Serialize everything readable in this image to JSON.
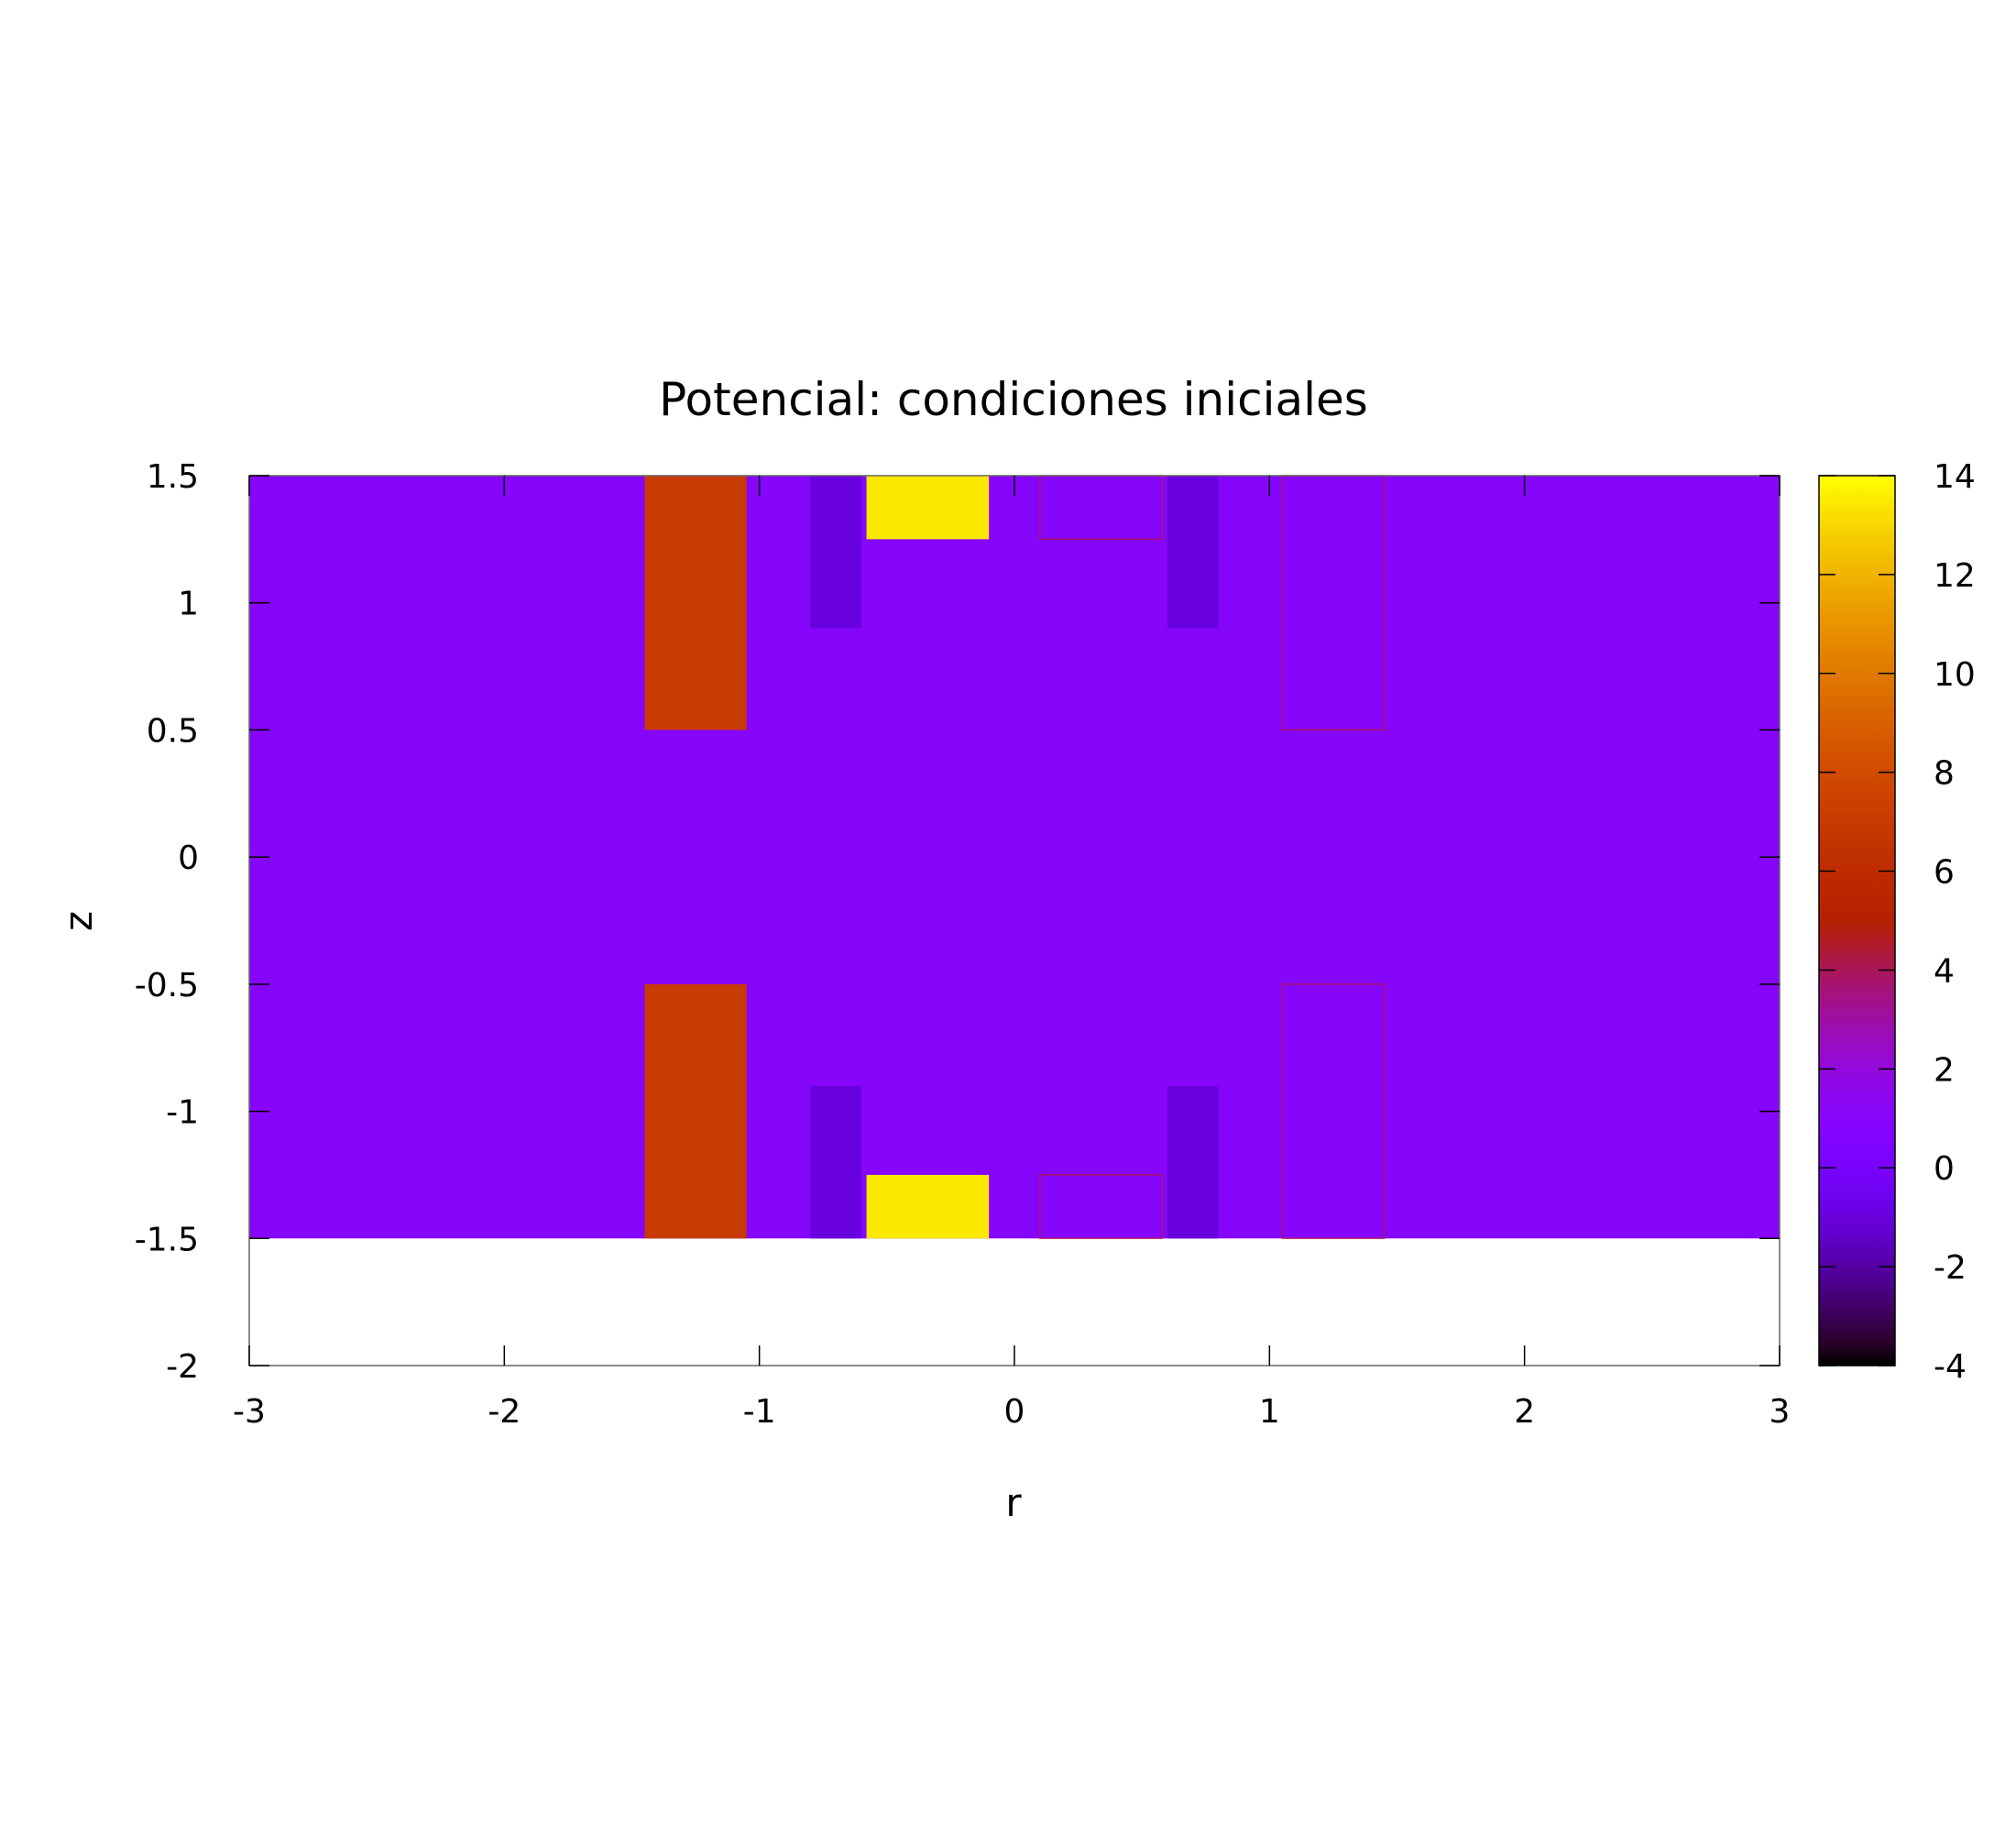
{
  "chart_data": {
    "type": "heatmap",
    "title": "Potencial: condiciones iniciales",
    "xlabel": "r",
    "ylabel": "z",
    "xlim": [
      -3,
      3
    ],
    "ylim": [
      -2,
      1.5
    ],
    "data_extent": {
      "x": [
        -3,
        3
      ],
      "z": [
        -1.5,
        1.5
      ]
    },
    "xticks": [
      "-3",
      "-2",
      "-1",
      "0",
      "1",
      "2",
      "3"
    ],
    "yticks": [
      "-2",
      "-1.5",
      "-1",
      "-0.5",
      "0",
      "0.5",
      "1",
      "1.5"
    ],
    "cbticks": [
      "-4",
      "-2",
      "0",
      "2",
      "4",
      "6",
      "8",
      "10",
      "12",
      "14"
    ],
    "cbrange": [
      -4,
      14
    ],
    "background_value": 1,
    "palette": "gnuplot-pm3d-default",
    "grid": false,
    "colorbox": "right",
    "regions": [
      {
        "r": [
          -1.45,
          -1.05
        ],
        "z": [
          0.5,
          1.5
        ],
        "value": 7
      },
      {
        "r": [
          -1.45,
          -1.05
        ],
        "z": [
          -1.5,
          -0.5
        ],
        "value": 7
      },
      {
        "r": [
          -0.8,
          -0.6
        ],
        "z": [
          0.9,
          1.5
        ],
        "value": -1
      },
      {
        "r": [
          -0.8,
          -0.6
        ],
        "z": [
          -1.5,
          -0.9
        ],
        "value": -1
      },
      {
        "r": [
          -0.58,
          -0.1
        ],
        "z": [
          1.25,
          1.5
        ],
        "value": 13.5
      },
      {
        "r": [
          -0.58,
          -0.1
        ],
        "z": [
          -1.5,
          -1.25
        ],
        "value": 13.5
      },
      {
        "r": [
          0.1,
          0.58
        ],
        "z": [
          1.25,
          1.5
        ],
        "value": 1
      },
      {
        "r": [
          0.1,
          0.58
        ],
        "z": [
          -1.5,
          -1.25
        ],
        "value": 1
      },
      {
        "r": [
          0.6,
          0.8
        ],
        "z": [
          0.9,
          1.5
        ],
        "value": -1
      },
      {
        "r": [
          0.6,
          0.8
        ],
        "z": [
          -1.5,
          -0.9
        ],
        "value": -1
      },
      {
        "r": [
          1.05,
          1.45
        ],
        "z": [
          0.5,
          1.5
        ],
        "value": 1
      },
      {
        "r": [
          1.05,
          1.45
        ],
        "z": [
          -1.5,
          -0.5
        ],
        "value": 1
      }
    ]
  }
}
